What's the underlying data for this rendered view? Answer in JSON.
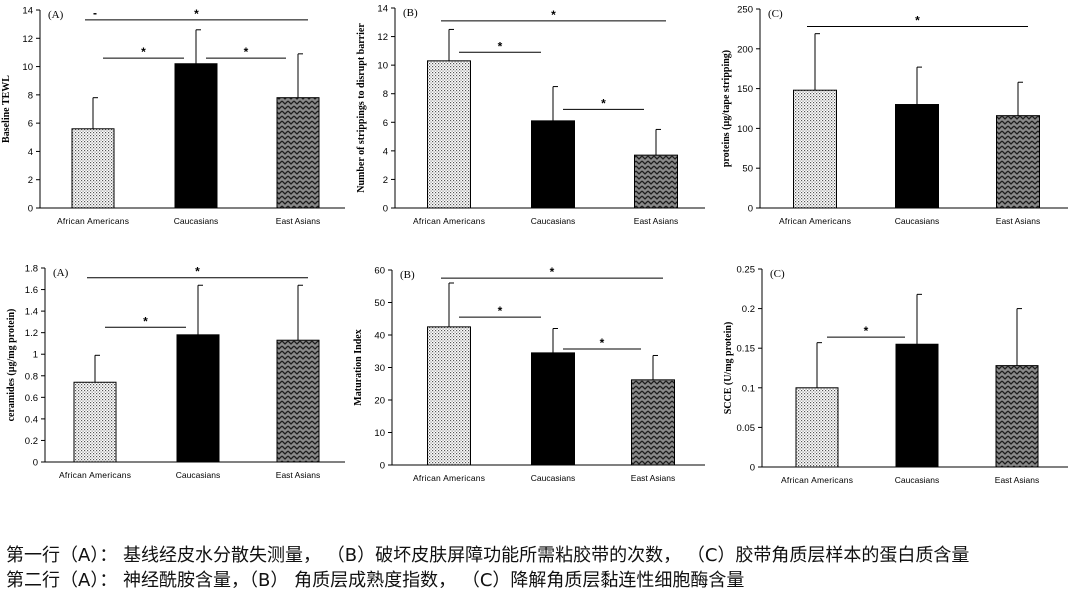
{
  "chart_data": [
    {
      "type": "bar",
      "panel_label": "(A)",
      "ylabel": "Baseline TEWL",
      "ylim": [
        0,
        14
      ],
      "yticks": [
        0,
        2,
        4,
        6,
        8,
        10,
        12,
        14
      ],
      "tick_labels": [
        "0",
        "2",
        "4",
        "6",
        "8",
        "10",
        "12",
        "14"
      ],
      "categories": [
        "African Americans",
        "Caucasians",
        "East Asians"
      ],
      "values": [
        5.6,
        10.2,
        7.8
      ],
      "errors": [
        2.2,
        2.4,
        3.1
      ],
      "significance": [
        {
          "from": 0,
          "to": 2,
          "y": 13.3,
          "label": "*",
          "extra": "-"
        },
        {
          "from": 0,
          "to": 1,
          "y": 10.6,
          "label": "*"
        },
        {
          "from": 1,
          "to": 2,
          "y": 10.6,
          "label": "*"
        }
      ]
    },
    {
      "type": "bar",
      "panel_label": "(B)",
      "ylabel": "Number of strippings to disrupt barrier",
      "ylim": [
        0,
        14
      ],
      "yticks": [
        0,
        2,
        4,
        6,
        8,
        10,
        12,
        14
      ],
      "tick_labels": [
        "0",
        "2",
        "4",
        "6",
        "8",
        "10",
        "12",
        "14"
      ],
      "categories": [
        "African Americans",
        "Caucasians",
        "East Asians"
      ],
      "values": [
        10.3,
        6.1,
        3.7
      ],
      "errors": [
        2.2,
        2.4,
        1.8
      ],
      "significance": [
        {
          "from": 0,
          "to": 2,
          "y": 13.1,
          "label": "*"
        },
        {
          "from": 0,
          "to": 1,
          "y": 10.9,
          "label": "*"
        },
        {
          "from": 1,
          "to": 2,
          "y": 6.9,
          "label": "*"
        }
      ]
    },
    {
      "type": "bar",
      "panel_label": "(C)",
      "ylabel": "proteins (µg/tape stripping)",
      "ylim": [
        0,
        250
      ],
      "yticks": [
        0,
        50,
        100,
        150,
        200,
        250
      ],
      "tick_labels": [
        "0",
        "50",
        "100",
        "150",
        "200",
        "250"
      ],
      "categories": [
        "African Americans",
        "Caucasians",
        "East Asians"
      ],
      "values": [
        148,
        130,
        116
      ],
      "errors": [
        71,
        47,
        42
      ],
      "significance": [
        {
          "from": 0,
          "to": 2,
          "y": 228,
          "label": "*"
        }
      ]
    },
    {
      "type": "bar",
      "panel_label": "(A)",
      "ylabel": "ceramides (µg/mg protein)",
      "ylim": [
        0,
        1.8
      ],
      "yticks": [
        0,
        0.2,
        0.4,
        0.6,
        0.8,
        1,
        1.2,
        1.4,
        1.6,
        1.8
      ],
      "tick_labels": [
        "0",
        "0.2",
        "0.4",
        "0.6",
        "0.8",
        "1",
        "1.2",
        "1.4",
        "1.6",
        "1.8"
      ],
      "categories": [
        "African Americans",
        "Caucasians",
        "East Asians"
      ],
      "values": [
        0.74,
        1.18,
        1.13
      ],
      "errors": [
        0.25,
        0.46,
        0.51
      ],
      "significance": [
        {
          "from": 0,
          "to": 2,
          "y": 1.71,
          "label": "*"
        },
        {
          "from": 0,
          "to": 1,
          "y": 1.25,
          "label": "*"
        }
      ]
    },
    {
      "type": "bar",
      "panel_label": "(B)",
      "ylabel": "Maturation Index",
      "ylim": [
        0,
        60
      ],
      "yticks": [
        0,
        10,
        20,
        30,
        40,
        50,
        60
      ],
      "tick_labels": [
        "0",
        "10",
        "20",
        "30",
        "40",
        "50",
        "60"
      ],
      "categories": [
        "African Americans",
        "Caucasians",
        "East Asians"
      ],
      "values": [
        42.5,
        34.5,
        26.2
      ],
      "errors": [
        13.5,
        7.5,
        7.5
      ],
      "significance": [
        {
          "from": 0,
          "to": 2,
          "y": 57.5,
          "label": "*"
        },
        {
          "from": 0,
          "to": 1,
          "y": 45.5,
          "label": "*"
        },
        {
          "from": 1,
          "to": 2,
          "y": 35.7,
          "label": "*"
        }
      ]
    },
    {
      "type": "bar",
      "panel_label": "(C)",
      "ylabel": "SCCE (U/mg protein)",
      "ylim": [
        0,
        0.25
      ],
      "yticks": [
        0,
        0.05,
        0.1,
        0.15,
        0.2,
        0.25
      ],
      "tick_labels": [
        "0",
        "0.05",
        "0.1",
        "0.15",
        "0.2",
        "0.25"
      ],
      "categories": [
        "African Americans",
        "Caucasians",
        "East Asians"
      ],
      "values": [
        0.1,
        0.155,
        0.128
      ],
      "errors": [
        0.057,
        0.063,
        0.072
      ],
      "significance": [
        {
          "from": 0,
          "to": 1,
          "y": 0.164,
          "label": "*"
        }
      ]
    }
  ],
  "caption": {
    "line1": "第一行（A）： 基线经皮水分散失测量， （B）破坏皮肤屏障功能所需粘胶带的次数， （C）胶带角质层样本的蛋白质含量",
    "line2": "第二行（A）： 神经酰胺含量，（B） 角质层成熟度指数， （C）降解角质层黏连性细胞酶含量"
  }
}
